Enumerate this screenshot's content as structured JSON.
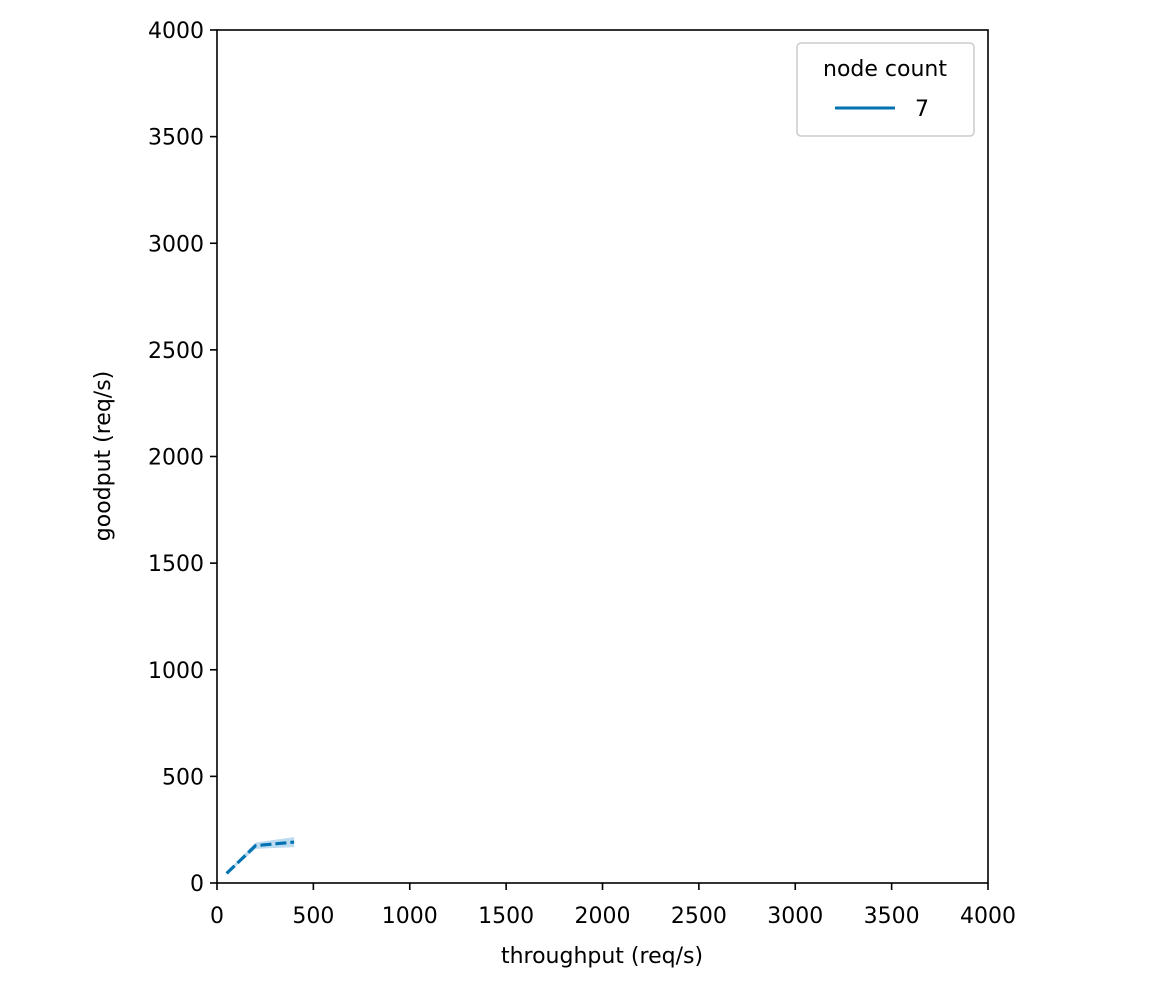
{
  "chart_data": {
    "type": "line",
    "xlabel": "throughput (req/s)",
    "ylabel": "goodput (req/s)",
    "xlim": [
      0,
      4000
    ],
    "ylim": [
      0,
      4000
    ],
    "xticks": [
      "0",
      "500",
      "1000",
      "1500",
      "2000",
      "2500",
      "3000",
      "3500",
      "4000"
    ],
    "yticks": [
      "0",
      "500",
      "1000",
      "1500",
      "2000",
      "2500",
      "3000",
      "3500",
      "4000"
    ],
    "grid": false,
    "legend": {
      "title": "node count",
      "placement": "top-right",
      "entries": [
        "7"
      ]
    },
    "series": [
      {
        "name": "7",
        "color": "#0173b2",
        "x": [
          50,
          200,
          400
        ],
        "y": [
          45,
          175,
          192
        ],
        "band_lower": [
          40,
          160,
          168
        ],
        "band_upper": [
          50,
          190,
          215
        ]
      }
    ]
  },
  "colors": {
    "series_line": "#0173b2",
    "series_band": "#a6cfea"
  }
}
